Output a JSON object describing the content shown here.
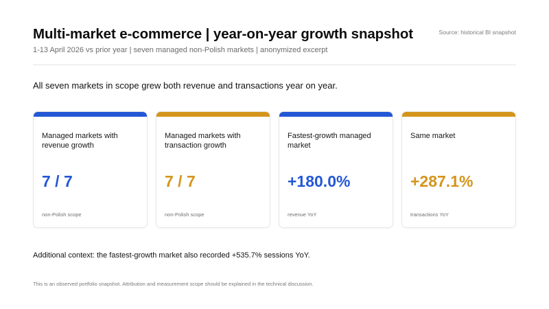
{
  "header": {
    "title": "Multi-market e-commerce | year-on-year growth snapshot",
    "subtitle": "1-13 April 2026 vs prior year | seven managed non-Polish markets | anonymized excerpt",
    "source": "Source: historical BI snapshot"
  },
  "headline": "All seven markets in scope grew both revenue and transactions year on year.",
  "colors": {
    "blue": "#2457d6",
    "gold": "#d4951c"
  },
  "cards": [
    {
      "label": "Managed markets with revenue growth",
      "value": "7 / 7",
      "note": "non-Polish scope",
      "accent": "blue"
    },
    {
      "label": "Managed markets with transaction growth",
      "value": "7 / 7",
      "note": "non-Polish scope",
      "accent": "gold"
    },
    {
      "label": "Fastest-growth managed market",
      "value": "+180.0%",
      "note": "revenue YoY",
      "accent": "blue"
    },
    {
      "label": "Same market",
      "value": "+287.1%",
      "note": "transactions YoY",
      "accent": "gold"
    }
  ],
  "context": "Additional context: the fastest-growth market also recorded +535.7% sessions YoY.",
  "footnote": "This is an observed portfolio snapshot. Attribution and measurement scope should be explained in the technical discussion."
}
